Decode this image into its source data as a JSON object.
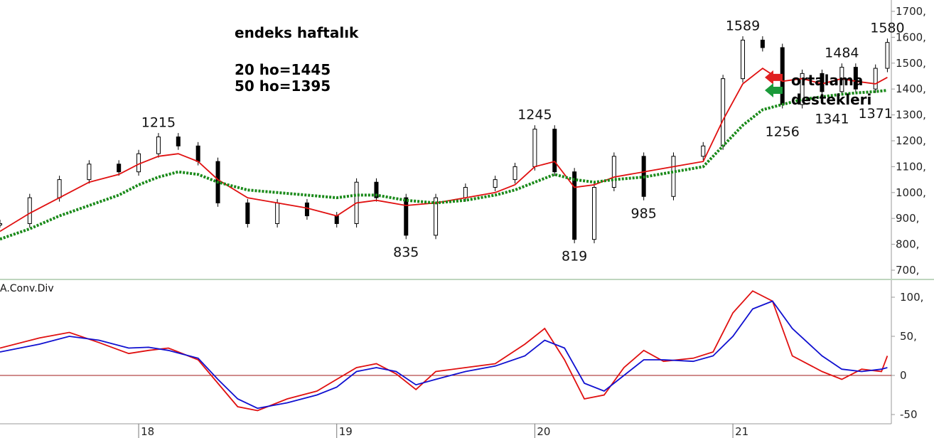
{
  "chart_data": [
    {
      "type": "candlestick",
      "title": "endeks haftalık",
      "notes": [
        "20 ho=1445",
        "50 ho=1395"
      ],
      "side_annotation": [
        "ortalama",
        "destekleri"
      ],
      "ylim": [
        660,
        1720
      ],
      "y_ticks": [
        "1700,",
        "1600,",
        "1500,",
        "1400,",
        "1300,",
        "1200,",
        "1100,",
        "1000,",
        "900,",
        "800,",
        "700,"
      ],
      "y_tick_values": [
        1700,
        1600,
        1500,
        1400,
        1300,
        1200,
        1100,
        1000,
        900,
        800,
        700
      ],
      "x_ticks": [
        "18",
        "19",
        "20",
        "21"
      ],
      "x_tick_values": [
        2018,
        2019,
        2020,
        2021
      ],
      "x_range": [
        2017.3,
        2021.8
      ],
      "price_series": [
        {
          "name": "",
          "color": "#000000",
          "x": [
            2017.3,
            2017.45,
            2017.6,
            2017.75,
            2017.9,
            2018.0,
            2018.1,
            2018.2,
            2018.3,
            2018.4,
            2018.55,
            2018.7,
            2018.85,
            2019.0,
            2019.1,
            2019.2,
            2019.35,
            2019.5,
            2019.65,
            2019.8,
            2019.9,
            2020.0,
            2020.1,
            2020.2,
            2020.3,
            2020.4,
            2020.55,
            2020.7,
            2020.85,
            2020.95,
            2021.05,
            2021.15,
            2021.25,
            2021.35,
            2021.45,
            2021.55,
            2021.62,
            2021.72,
            2021.78
          ],
          "values": [
            880,
            980,
            1050,
            1110,
            1080,
            1150,
            1215,
            1180,
            1120,
            960,
            880,
            960,
            910,
            880,
            1040,
            980,
            835,
            980,
            1020,
            1050,
            1100,
            1245,
            1080,
            819,
            1020,
            1140,
            985,
            1140,
            1180,
            1440,
            1589,
            1560,
            1340,
            1460,
            1390,
            1484,
            1400,
            1480,
            1580
          ]
        },
        {
          "name": "",
          "color": "#e01010",
          "x": [
            2017.3,
            2017.45,
            2017.6,
            2017.75,
            2017.9,
            2018.0,
            2018.1,
            2018.2,
            2018.3,
            2018.4,
            2018.55,
            2018.7,
            2018.85,
            2019.0,
            2019.1,
            2019.2,
            2019.35,
            2019.5,
            2019.65,
            2019.8,
            2019.9,
            2020.0,
            2020.1,
            2020.2,
            2020.3,
            2020.4,
            2020.55,
            2020.7,
            2020.85,
            2020.95,
            2021.05,
            2021.15,
            2021.25,
            2021.35,
            2021.45,
            2021.55,
            2021.62,
            2021.72,
            2021.78
          ],
          "values": [
            850,
            920,
            980,
            1040,
            1070,
            1110,
            1140,
            1150,
            1120,
            1050,
            980,
            960,
            940,
            910,
            960,
            970,
            950,
            960,
            980,
            1000,
            1030,
            1100,
            1120,
            1020,
            1030,
            1060,
            1080,
            1100,
            1120,
            1280,
            1420,
            1480,
            1430,
            1440,
            1420,
            1440,
            1430,
            1420,
            1445
          ]
        },
        {
          "name": "",
          "color": "#1a8a1a",
          "x": [
            2017.3,
            2017.45,
            2017.6,
            2017.75,
            2017.9,
            2018.0,
            2018.1,
            2018.2,
            2018.3,
            2018.4,
            2018.55,
            2018.7,
            2018.85,
            2019.0,
            2019.1,
            2019.2,
            2019.35,
            2019.5,
            2019.65,
            2019.8,
            2019.9,
            2020.0,
            2020.1,
            2020.2,
            2020.3,
            2020.4,
            2020.55,
            2020.7,
            2020.85,
            2020.95,
            2021.05,
            2021.15,
            2021.25,
            2021.35,
            2021.45,
            2021.55,
            2021.62,
            2021.72,
            2021.78
          ],
          "values": [
            820,
            860,
            910,
            950,
            990,
            1030,
            1060,
            1080,
            1070,
            1040,
            1010,
            1000,
            990,
            980,
            990,
            990,
            970,
            960,
            970,
            990,
            1010,
            1040,
            1070,
            1050,
            1040,
            1050,
            1060,
            1080,
            1100,
            1180,
            1260,
            1320,
            1340,
            1360,
            1370,
            1380,
            1385,
            1390,
            1395
          ]
        }
      ],
      "peak_labels": [
        {
          "text": "1215",
          "x": 2018.1,
          "y": 1215,
          "pos": "above"
        },
        {
          "text": "835",
          "x": 2019.35,
          "y": 835,
          "pos": "below"
        },
        {
          "text": "1245",
          "x": 2020.0,
          "y": 1245,
          "pos": "above"
        },
        {
          "text": "819",
          "x": 2020.2,
          "y": 819,
          "pos": "below"
        },
        {
          "text": "985",
          "x": 2020.55,
          "y": 985,
          "pos": "below"
        },
        {
          "text": "1589",
          "x": 2021.05,
          "y": 1589,
          "pos": "above"
        },
        {
          "text": "1256",
          "x": 2021.25,
          "y": 1300,
          "pos": "below"
        },
        {
          "text": "1484",
          "x": 2021.55,
          "y": 1484,
          "pos": "above"
        },
        {
          "text": "1341",
          "x": 2021.5,
          "y": 1350,
          "pos": "below"
        },
        {
          "text": "1580",
          "x": 2021.78,
          "y": 1580,
          "pos": "above"
        },
        {
          "text": "1371",
          "x": 2021.72,
          "y": 1371,
          "pos": "below"
        }
      ],
      "arrows": [
        {
          "color": "#e02020",
          "value": 1445
        },
        {
          "color": "#1a9a3a",
          "value": 1395
        }
      ]
    },
    {
      "type": "line",
      "title": "A.Conv.Div",
      "ylim": [
        -50,
        115
      ],
      "y_ticks": [
        "100,",
        "50,",
        "0",
        "-50"
      ],
      "y_tick_values": [
        100,
        50,
        0,
        -50
      ],
      "x_range": [
        2017.3,
        2021.8
      ],
      "zero_line_color": "#a01818",
      "series": [
        {
          "name": "",
          "color": "#e01010",
          "x": [
            2017.3,
            2017.5,
            2017.65,
            2017.8,
            2017.95,
            2018.05,
            2018.15,
            2018.3,
            2018.4,
            2018.5,
            2018.6,
            2018.75,
            2018.9,
            2019.0,
            2019.1,
            2019.2,
            2019.3,
            2019.4,
            2019.5,
            2019.65,
            2019.8,
            2019.95,
            2020.05,
            2020.15,
            2020.25,
            2020.35,
            2020.45,
            2020.55,
            2020.65,
            2020.8,
            2020.9,
            2021.0,
            2021.1,
            2021.2,
            2021.3,
            2021.45,
            2021.55,
            2021.65,
            2021.75,
            2021.78
          ],
          "values": [
            35,
            48,
            55,
            42,
            28,
            32,
            35,
            20,
            -10,
            -40,
            -45,
            -30,
            -20,
            -5,
            10,
            15,
            2,
            -18,
            5,
            10,
            15,
            40,
            60,
            20,
            -30,
            -25,
            10,
            32,
            18,
            22,
            30,
            80,
            108,
            95,
            25,
            5,
            -5,
            8,
            5,
            25
          ]
        },
        {
          "name": "",
          "color": "#1010d0",
          "x": [
            2017.3,
            2017.5,
            2017.65,
            2017.8,
            2017.95,
            2018.05,
            2018.15,
            2018.3,
            2018.4,
            2018.5,
            2018.6,
            2018.75,
            2018.9,
            2019.0,
            2019.1,
            2019.2,
            2019.3,
            2019.4,
            2019.5,
            2019.65,
            2019.8,
            2019.95,
            2020.05,
            2020.15,
            2020.25,
            2020.35,
            2020.45,
            2020.55,
            2020.65,
            2020.8,
            2020.9,
            2021.0,
            2021.1,
            2021.2,
            2021.3,
            2021.45,
            2021.55,
            2021.65,
            2021.75,
            2021.78
          ],
          "values": [
            30,
            40,
            50,
            45,
            35,
            36,
            32,
            22,
            -5,
            -30,
            -42,
            -35,
            -25,
            -15,
            5,
            10,
            5,
            -12,
            -5,
            5,
            12,
            25,
            45,
            35,
            -10,
            -20,
            0,
            20,
            20,
            18,
            25,
            50,
            85,
            95,
            60,
            25,
            8,
            5,
            8,
            10
          ]
        }
      ],
      "x_ticks": [
        "18",
        "19",
        "20",
        "21"
      ],
      "x_tick_values": [
        2018,
        2019,
        2020,
        2021
      ]
    }
  ]
}
